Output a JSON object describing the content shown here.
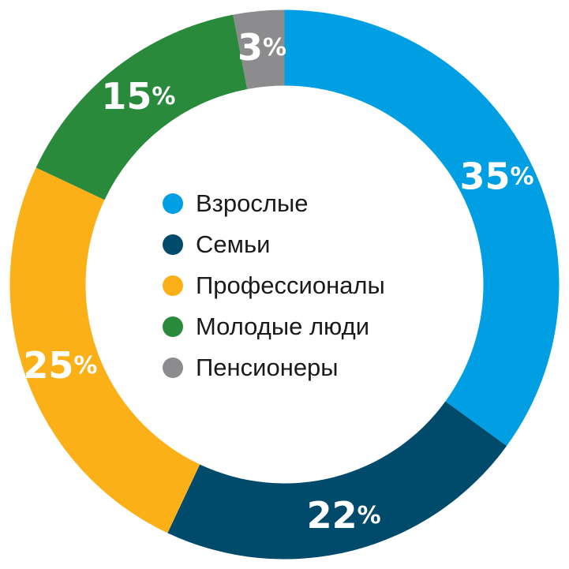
{
  "chart_data": {
    "type": "pie",
    "title": "",
    "donut": true,
    "legend_position": "center",
    "categories": [
      "Взрослые",
      "Семьи",
      "Профессионалы",
      "Молодые люди",
      "Пенсионеры"
    ],
    "values": [
      35,
      22,
      25,
      15,
      3
    ],
    "value_labels": [
      "35",
      "22",
      "25",
      "15",
      "3"
    ],
    "unit": "%",
    "colors": [
      "#009fe3",
      "#004a6b",
      "#fbb017",
      "#2a8a3c",
      "#8c8c8e"
    ]
  }
}
